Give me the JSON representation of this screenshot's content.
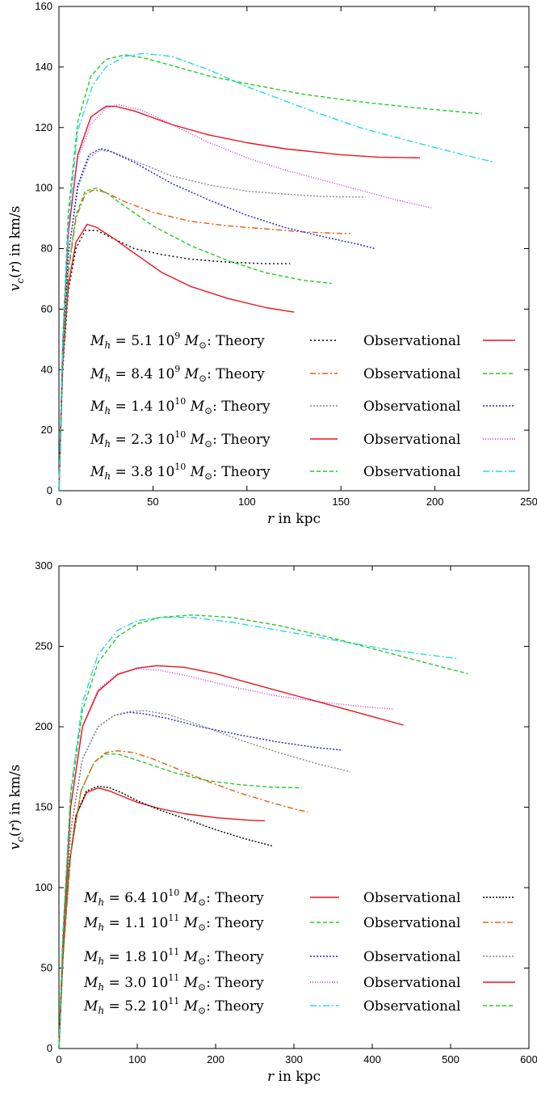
{
  "chart_data": [
    {
      "type": "line",
      "xlabel": "r in kpc",
      "ylabel": "v_c(r) in km/s",
      "xlim": [
        0,
        250
      ],
      "ylim": [
        0,
        160
      ],
      "xticks": [
        0,
        50,
        100,
        150,
        200,
        250
      ],
      "yticks": [
        0,
        20,
        40,
        60,
        80,
        100,
        120,
        140,
        160
      ],
      "grid": false,
      "legend_position": "bottom",
      "legend_rows": [
        {
          "mass": "5.1 10^9",
          "theory_label": "Theory",
          "obs_label": "Observational"
        },
        {
          "mass": "8.4 10^9",
          "theory_label": "Theory",
          "obs_label": "Observational"
        },
        {
          "mass": "1.4 10^10",
          "theory_label": "Theory",
          "obs_label": "Observational"
        },
        {
          "mass": "2.3 10^10",
          "theory_label": "Theory",
          "obs_label": "Observational"
        },
        {
          "mass": "3.8 10^10",
          "theory_label": "Theory",
          "obs_label": "Observational"
        }
      ],
      "series": [
        {
          "kind": "theory",
          "row": 0,
          "color": "#000000",
          "dash": "2,3",
          "x": [
            0,
            2,
            5,
            9,
            14,
            20,
            30,
            40,
            55,
            70,
            90,
            110,
            123
          ],
          "y": [
            0,
            40,
            66,
            80,
            86,
            86,
            83,
            80,
            78,
            76.5,
            75.5,
            75,
            75
          ]
        },
        {
          "kind": "obs",
          "row": 0,
          "color": "#e8141e",
          "dash": "",
          "x": [
            0,
            2,
            5,
            9,
            15,
            20,
            30,
            40,
            55,
            70,
            90,
            110,
            125
          ],
          "y": [
            0,
            42,
            68,
            82,
            88,
            87,
            83,
            78.5,
            72,
            67.5,
            63.5,
            60.5,
            59
          ]
        },
        {
          "kind": "theory",
          "row": 1,
          "color": "#e06010",
          "dash": "7,3,2,3",
          "x": [
            0,
            2,
            5,
            9,
            14,
            19,
            25,
            35,
            50,
            70,
            90,
            110,
            130,
            150,
            155
          ],
          "y": [
            0,
            42,
            72,
            90,
            98,
            99.5,
            98.5,
            95.5,
            92,
            89,
            87.5,
            86.5,
            85.5,
            85,
            85
          ]
        },
        {
          "kind": "obs",
          "row": 1,
          "color": "#22cc22",
          "dash": "5,3",
          "x": [
            0,
            2,
            5,
            9,
            14,
            20,
            25,
            35,
            50,
            70,
            90,
            110,
            130,
            145
          ],
          "y": [
            0,
            43,
            73,
            91,
            99,
            100,
            98.5,
            94,
            87.5,
            81,
            76,
            72,
            69.5,
            68.5
          ]
        },
        {
          "kind": "theory",
          "row": 2,
          "color": "#888888",
          "dash": "2,2",
          "x": [
            0,
            2,
            5,
            10,
            16,
            22,
            28,
            40,
            60,
            80,
            100,
            120,
            140,
            163
          ],
          "y": [
            0,
            45,
            78,
            100,
            110,
            112.5,
            112,
            109,
            104,
            101,
            99,
            98,
            97.2,
            97
          ]
        },
        {
          "kind": "obs",
          "row": 2,
          "color": "#2020cc",
          "dash": "2,2",
          "x": [
            0,
            2,
            5,
            10,
            16,
            22,
            26,
            40,
            60,
            80,
            100,
            120,
            140,
            160,
            168
          ],
          "y": [
            0,
            45,
            78,
            101,
            111,
            113,
            112.5,
            108.5,
            101.5,
            96,
            91,
            87,
            84,
            81.3,
            80
          ]
        },
        {
          "kind": "theory",
          "row": 3,
          "color": "#e8141e",
          "dash": "",
          "x": [
            0,
            2,
            5,
            10,
            17,
            25,
            30,
            40,
            60,
            80,
            100,
            120,
            150,
            170,
            192
          ],
          "y": [
            0,
            48,
            85,
            111,
            123.5,
            127,
            127,
            125.5,
            121,
            117.5,
            115,
            113,
            111,
            110.2,
            110
          ]
        },
        {
          "kind": "obs",
          "row": 3,
          "color": "#cc30cc",
          "dash": "1,2",
          "x": [
            0,
            2,
            5,
            10,
            17,
            25,
            32,
            45,
            60,
            80,
            100,
            120,
            150,
            180,
            198
          ],
          "y": [
            0,
            48,
            85,
            110,
            121,
            126.5,
            127.5,
            125.5,
            121,
            115,
            110,
            106,
            101,
            96,
            93.5
          ]
        },
        {
          "kind": "theory",
          "row": 4,
          "color": "#22cc22",
          "dash": "5,3",
          "x": [
            0,
            2,
            5,
            10,
            17,
            25,
            35,
            45,
            60,
            80,
            100,
            130,
            160,
            190,
            225
          ],
          "y": [
            0,
            50,
            92,
            122,
            137,
            142.5,
            144,
            143,
            140.5,
            137,
            134.5,
            131,
            128.5,
            126.5,
            124.5
          ]
        },
        {
          "kind": "obs",
          "row": 4,
          "color": "#20d8e8",
          "dash": "8,3,2,3",
          "x": [
            0,
            2,
            5,
            10,
            18,
            25,
            35,
            45,
            60,
            80,
            100,
            130,
            160,
            190,
            215,
            232
          ],
          "y": [
            0,
            48,
            88,
            119,
            134,
            140,
            143.5,
            144.5,
            143.5,
            139,
            133.5,
            126.5,
            120,
            115,
            111,
            108.5
          ]
        }
      ]
    },
    {
      "type": "line",
      "xlabel": "r in kpc",
      "ylabel": "v_c(r) in km/s",
      "xlim": [
        0,
        600
      ],
      "ylim": [
        0,
        300
      ],
      "xticks": [
        0,
        100,
        200,
        300,
        400,
        500,
        600
      ],
      "yticks": [
        0,
        50,
        100,
        150,
        200,
        250,
        300
      ],
      "grid": false,
      "legend_position": "bottom",
      "legend_rows": [
        {
          "mass": "6.4 10^10",
          "theory_label": "Theory",
          "obs_label": "Observational"
        },
        {
          "mass": "1.1 10^11",
          "theory_label": "Theory",
          "obs_label": "Observational"
        },
        {
          "mass": "1.8 10^11",
          "theory_label": "Theory",
          "obs_label": "Observational"
        },
        {
          "mass": "3.0 10^11",
          "theory_label": "Theory",
          "obs_label": "Observational"
        },
        {
          "mass": "5.2 10^11",
          "theory_label": "Theory",
          "obs_label": "Observational"
        }
      ],
      "series": [
        {
          "kind": "theory",
          "row": 0,
          "color": "#e8141e",
          "dash": "",
          "x": [
            0,
            5,
            12,
            22,
            35,
            50,
            65,
            80,
            100,
            130,
            160,
            200,
            240,
            263
          ],
          "y": [
            0,
            55,
            110,
            145,
            159,
            162,
            160,
            157,
            153,
            149,
            146,
            143.5,
            142,
            141.5
          ]
        },
        {
          "kind": "obs",
          "row": 0,
          "color": "#000000",
          "dash": "2,2",
          "x": [
            0,
            5,
            12,
            22,
            35,
            50,
            65,
            80,
            100,
            130,
            160,
            200,
            240,
            272
          ],
          "y": [
            0,
            55,
            110,
            145,
            160,
            163,
            162,
            159,
            154,
            148,
            143,
            136,
            130,
            126
          ]
        },
        {
          "kind": "theory",
          "row": 1,
          "color": "#22cc22",
          "dash": "5,3",
          "x": [
            0,
            5,
            15,
            28,
            45,
            60,
            75,
            95,
            120,
            150,
            190,
            230,
            270,
            310
          ],
          "y": [
            0,
            55,
            120,
            160,
            178,
            183,
            183,
            180,
            176,
            171,
            166.5,
            164,
            162.5,
            162
          ]
        },
        {
          "kind": "obs",
          "row": 1,
          "color": "#e06010",
          "dash": "7,3,2,3",
          "x": [
            0,
            5,
            15,
            28,
            45,
            60,
            75,
            95,
            120,
            150,
            190,
            230,
            270,
            300,
            318
          ],
          "y": [
            0,
            55,
            120,
            160,
            178,
            184,
            185,
            184,
            180,
            174,
            166,
            159,
            153,
            149,
            147
          ]
        },
        {
          "kind": "theory",
          "row": 2,
          "color": "#2020cc",
          "dash": "2,2",
          "x": [
            0,
            5,
            15,
            30,
            50,
            70,
            90,
            110,
            140,
            180,
            230,
            280,
            330,
            362
          ],
          "y": [
            0,
            60,
            135,
            180,
            200,
            207,
            209,
            208,
            205,
            200,
            195,
            190.5,
            187,
            185.5
          ]
        },
        {
          "kind": "obs",
          "row": 2,
          "color": "#888888",
          "dash": "2,2",
          "x": [
            0,
            5,
            15,
            30,
            50,
            70,
            90,
            110,
            140,
            180,
            230,
            280,
            330,
            372
          ],
          "y": [
            0,
            60,
            135,
            180,
            200,
            207,
            209.5,
            210,
            207.5,
            201,
            192,
            184,
            177,
            172
          ]
        },
        {
          "kind": "theory",
          "row": 3,
          "color": "#cc30cc",
          "dash": "1,2",
          "x": [
            0,
            5,
            15,
            30,
            50,
            75,
            100,
            130,
            170,
            220,
            280,
            340,
            400,
            428
          ],
          "y": [
            0,
            65,
            150,
            200,
            223,
            233,
            236,
            235,
            231,
            225,
            219,
            215,
            212,
            211
          ]
        },
        {
          "kind": "obs",
          "row": 3,
          "color": "#e8141e",
          "dash": "",
          "x": [
            0,
            5,
            15,
            30,
            50,
            75,
            100,
            125,
            160,
            200,
            260,
            320,
            380,
            440
          ],
          "y": [
            0,
            65,
            150,
            200,
            222,
            232.5,
            236.5,
            238,
            237,
            233,
            225,
            217,
            209,
            201
          ]
        },
        {
          "kind": "theory",
          "row": 4,
          "color": "#20d8e8",
          "dash": "8,3,2,3",
          "x": [
            0,
            5,
            15,
            30,
            50,
            75,
            100,
            130,
            170,
            220,
            280,
            350,
            420,
            490,
            508
          ],
          "y": [
            0,
            70,
            160,
            215,
            245,
            260,
            266,
            268,
            268,
            265,
            260,
            254,
            248,
            243.5,
            242.5
          ]
        },
        {
          "kind": "obs",
          "row": 4,
          "color": "#22cc22",
          "dash": "5,3",
          "x": [
            0,
            5,
            15,
            30,
            50,
            75,
            100,
            130,
            170,
            220,
            280,
            350,
            420,
            490,
            522
          ],
          "y": [
            0,
            70,
            157,
            210,
            240,
            256,
            264,
            268,
            269.5,
            268,
            263,
            255,
            246,
            237,
            233
          ]
        }
      ]
    }
  ]
}
